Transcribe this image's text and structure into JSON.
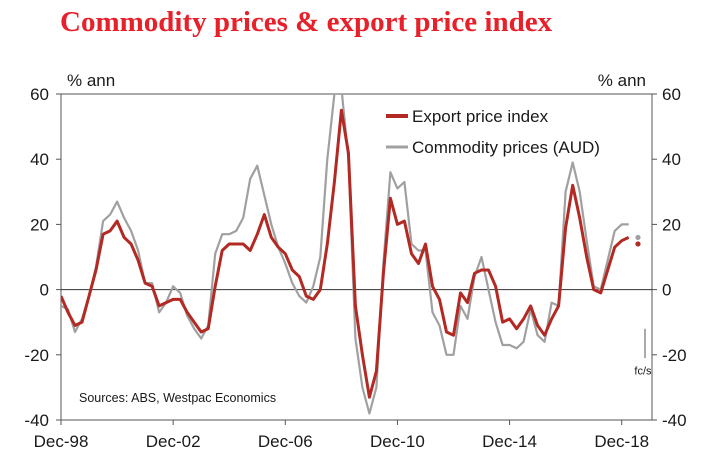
{
  "title": "Commodity prices & export price index",
  "chart_data": {
    "type": "line",
    "title": "Commodity prices & export price index",
    "ylabel_left": "% ann",
    "ylabel_right": "% ann",
    "ylim": [
      -40,
      60
    ],
    "yticks": [
      -40,
      -20,
      0,
      20,
      40,
      60
    ],
    "xlim": [
      1998.92,
      2020.0
    ],
    "xticks": [
      {
        "value": 1998.92,
        "label": "Dec-98"
      },
      {
        "value": 2002.92,
        "label": "Dec-02"
      },
      {
        "value": 2006.92,
        "label": "Dec-06"
      },
      {
        "value": 2010.92,
        "label": "Dec-10"
      },
      {
        "value": 2014.92,
        "label": "Dec-14"
      },
      {
        "value": 2018.92,
        "label": "Dec-18"
      }
    ],
    "legend_position": "top-right",
    "source_note": "Sources: ABS, Westpac Economics",
    "forecast_label": "fc/s",
    "forecast_marker_x": 2019.75,
    "series": [
      {
        "name": "Export price index",
        "color": "#b22a23",
        "x": [
          1998.92,
          1999.17,
          1999.42,
          1999.67,
          1999.92,
          2000.17,
          2000.42,
          2000.67,
          2000.92,
          2001.17,
          2001.42,
          2001.67,
          2001.92,
          2002.17,
          2002.42,
          2002.67,
          2002.92,
          2003.17,
          2003.42,
          2003.67,
          2003.92,
          2004.17,
          2004.42,
          2004.67,
          2004.92,
          2005.17,
          2005.42,
          2005.67,
          2005.92,
          2006.17,
          2006.42,
          2006.67,
          2006.92,
          2007.17,
          2007.42,
          2007.67,
          2007.92,
          2008.17,
          2008.42,
          2008.67,
          2008.92,
          2009.17,
          2009.42,
          2009.67,
          2009.92,
          2010.17,
          2010.42,
          2010.67,
          2010.92,
          2011.17,
          2011.42,
          2011.67,
          2011.92,
          2012.17,
          2012.42,
          2012.67,
          2012.92,
          2013.17,
          2013.42,
          2013.67,
          2013.92,
          2014.17,
          2014.42,
          2014.67,
          2014.92,
          2015.17,
          2015.42,
          2015.67,
          2015.92,
          2016.17,
          2016.42,
          2016.67,
          2016.92,
          2017.17,
          2017.42,
          2017.67,
          2017.92,
          2018.17,
          2018.42,
          2018.67,
          2018.92,
          2019.17
        ],
        "values": [
          -2,
          -7,
          -11,
          -10,
          -2,
          6,
          17,
          18,
          21,
          16,
          14,
          9,
          2,
          1,
          -5,
          -4,
          -3,
          -3,
          -7,
          -10,
          -13,
          -12,
          1,
          12,
          14,
          14,
          14,
          12,
          17,
          23,
          16,
          13,
          11,
          6,
          4,
          -2,
          -3,
          0,
          14,
          33,
          55,
          42,
          -5,
          -20,
          -33,
          -25,
          5,
          28,
          20,
          21,
          11,
          8,
          14,
          1,
          -3,
          -13,
          -14,
          -1,
          -4,
          5,
          6,
          6,
          1,
          -10,
          -9,
          -12,
          -9,
          -5,
          -11,
          -14,
          -9,
          -5,
          19,
          32,
          22,
          10,
          0,
          -1,
          6,
          13,
          15,
          16
        ]
      },
      {
        "name": "Commodity prices (AUD)",
        "color": "#a0a0a0",
        "x": [
          1998.92,
          1999.17,
          1999.42,
          1999.67,
          1999.92,
          2000.17,
          2000.42,
          2000.67,
          2000.92,
          2001.17,
          2001.42,
          2001.67,
          2001.92,
          2002.17,
          2002.42,
          2002.67,
          2002.92,
          2003.17,
          2003.42,
          2003.67,
          2003.92,
          2004.17,
          2004.42,
          2004.67,
          2004.92,
          2005.17,
          2005.42,
          2005.67,
          2005.92,
          2006.17,
          2006.42,
          2006.67,
          2006.92,
          2007.17,
          2007.42,
          2007.67,
          2007.92,
          2008.17,
          2008.42,
          2008.67,
          2008.92,
          2009.17,
          2009.42,
          2009.67,
          2009.92,
          2010.17,
          2010.42,
          2010.67,
          2010.92,
          2011.17,
          2011.42,
          2011.67,
          2011.92,
          2012.17,
          2012.42,
          2012.67,
          2012.92,
          2013.17,
          2013.42,
          2013.67,
          2013.92,
          2014.17,
          2014.42,
          2014.67,
          2014.92,
          2015.17,
          2015.42,
          2015.67,
          2015.92,
          2016.17,
          2016.42,
          2016.67,
          2016.92,
          2017.17,
          2017.42,
          2017.67,
          2017.92,
          2018.17,
          2018.42,
          2018.67,
          2018.92,
          2019.17
        ],
        "values": [
          -5,
          -6,
          -13,
          -9,
          -2,
          7,
          21,
          23,
          27,
          22,
          18,
          12,
          2,
          2,
          -7,
          -4,
          1,
          -1,
          -8,
          -12,
          -15,
          -11,
          11,
          17,
          17,
          18,
          22,
          34,
          38,
          29,
          20,
          13,
          8,
          2,
          -2,
          -4,
          1,
          10,
          40,
          60,
          62,
          40,
          -15,
          -30,
          -38,
          -30,
          8,
          36,
          31,
          33,
          14,
          12,
          12,
          -7,
          -11,
          -20,
          -20,
          -5,
          -9,
          4,
          10,
          0,
          -10,
          -17,
          -17,
          -18,
          -16,
          -6,
          -14,
          -16,
          -4,
          -5,
          30,
          39,
          30,
          15,
          1,
          0,
          9,
          18,
          20,
          20
        ]
      }
    ],
    "forecast_points": [
      {
        "series": "Export price index",
        "x": 2019.5,
        "y": 14
      },
      {
        "series": "Commodity prices (AUD)",
        "x": 2019.5,
        "y": 16
      }
    ]
  }
}
